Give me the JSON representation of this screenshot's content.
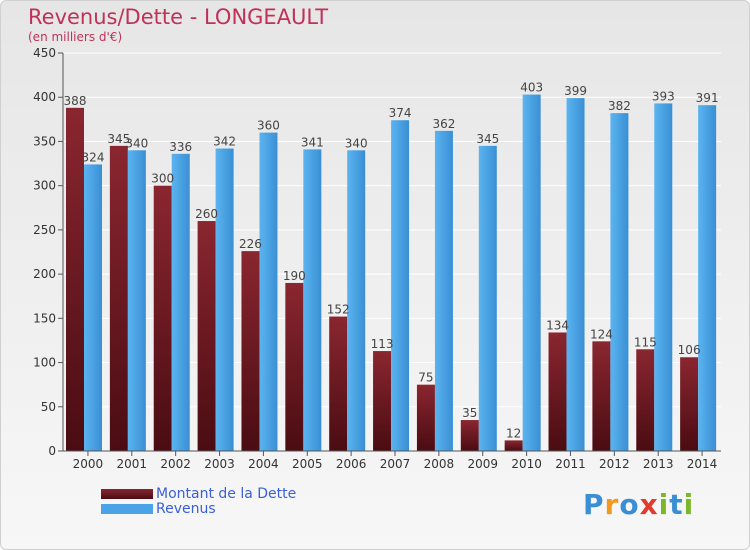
{
  "chart_data": {
    "type": "bar",
    "title": "Revenus/Dette - LONGEAULT",
    "subtitle": "(en milliers d'€)",
    "categories": [
      "2000",
      "2001",
      "2002",
      "2003",
      "2004",
      "2005",
      "2006",
      "2007",
      "2008",
      "2009",
      "2010",
      "2011",
      "2012",
      "2013",
      "2014"
    ],
    "series": [
      {
        "name": "Montant de la Dette",
        "values": [
          388,
          345,
          300,
          260,
          226,
          190,
          152,
          113,
          75,
          35,
          12,
          134,
          124,
          115,
          106
        ]
      },
      {
        "name": "Revenus",
        "values": [
          324,
          340,
          336,
          342,
          360,
          341,
          340,
          374,
          362,
          345,
          403,
          399,
          382,
          393,
          391
        ]
      }
    ],
    "ylim": [
      0,
      450
    ],
    "yticks": [
      0,
      50,
      100,
      150,
      200,
      250,
      300,
      350,
      400,
      450
    ],
    "grid": true,
    "legend_placement": "bottom-left",
    "colors": {
      "dette": "#6b1a22",
      "revenus": "#4aa3e6",
      "title": "#c0315a",
      "legend_text": "#3b5fd6"
    }
  },
  "logo": {
    "letters": [
      "P",
      "r",
      "o",
      "x",
      "i",
      "t",
      "i"
    ],
    "colors": [
      "#3a8fd4",
      "#f39a1e",
      "#3a8fd4",
      "#e23b2e",
      "#7ab82a",
      "#3a8fd4",
      "#7ab82a"
    ]
  }
}
